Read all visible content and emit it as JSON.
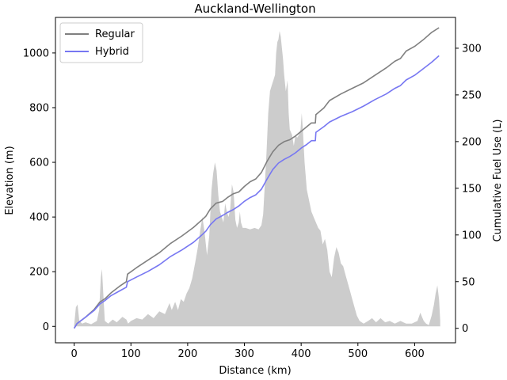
{
  "chart_data": {
    "type": "line",
    "title": "Auckland-Wellington",
    "xlabel": "Distance (km)",
    "ylabel": "Elevation (m)",
    "y2label": "Cumulative Fuel Use (L)",
    "xlim": [
      -33,
      672
    ],
    "ylim": [
      -60,
      1130
    ],
    "y2lim": [
      -15.5,
      333
    ],
    "xticks": [
      0,
      100,
      200,
      300,
      400,
      500,
      600
    ],
    "yticks": [
      0,
      200,
      400,
      600,
      800,
      1000
    ],
    "y2ticks": [
      0,
      50,
      100,
      150,
      200,
      250,
      300
    ],
    "grid": false,
    "legend": "top-left",
    "elevation": {
      "name": "Elevation",
      "color": "#cccccc",
      "points": [
        [
          0,
          5
        ],
        [
          3,
          70
        ],
        [
          6,
          80
        ],
        [
          9,
          20
        ],
        [
          14,
          10
        ],
        [
          20,
          15
        ],
        [
          30,
          8
        ],
        [
          40,
          20
        ],
        [
          44,
          60
        ],
        [
          47,
          180
        ],
        [
          49,
          210
        ],
        [
          51,
          130
        ],
        [
          54,
          20
        ],
        [
          60,
          10
        ],
        [
          68,
          25
        ],
        [
          75,
          15
        ],
        [
          85,
          35
        ],
        [
          92,
          25
        ],
        [
          95,
          10
        ],
        [
          100,
          20
        ],
        [
          110,
          30
        ],
        [
          120,
          25
        ],
        [
          130,
          45
        ],
        [
          140,
          30
        ],
        [
          150,
          55
        ],
        [
          160,
          45
        ],
        [
          168,
          85
        ],
        [
          172,
          60
        ],
        [
          178,
          90
        ],
        [
          183,
          60
        ],
        [
          188,
          100
        ],
        [
          193,
          90
        ],
        [
          198,
          120
        ],
        [
          203,
          140
        ],
        [
          208,
          175
        ],
        [
          213,
          230
        ],
        [
          218,
          290
        ],
        [
          222,
          350
        ],
        [
          226,
          400
        ],
        [
          230,
          340
        ],
        [
          234,
          260
        ],
        [
          238,
          330
        ],
        [
          242,
          500
        ],
        [
          245,
          560
        ],
        [
          248,
          600
        ],
        [
          251,
          570
        ],
        [
          254,
          480
        ],
        [
          257,
          420
        ],
        [
          260,
          400
        ],
        [
          263,
          380
        ],
        [
          266,
          450
        ],
        [
          269,
          420
        ],
        [
          272,
          400
        ],
        [
          275,
          430
        ],
        [
          278,
          520
        ],
        [
          281,
          490
        ],
        [
          284,
          390
        ],
        [
          287,
          360
        ],
        [
          290,
          380
        ],
        [
          292,
          420
        ],
        [
          294,
          380
        ],
        [
          297,
          360
        ],
        [
          302,
          360
        ],
        [
          310,
          355
        ],
        [
          318,
          360
        ],
        [
          325,
          355
        ],
        [
          330,
          370
        ],
        [
          333,
          410
        ],
        [
          336,
          520
        ],
        [
          339,
          640
        ],
        [
          342,
          780
        ],
        [
          345,
          860
        ],
        [
          348,
          880
        ],
        [
          351,
          900
        ],
        [
          354,
          920
        ],
        [
          356,
          1000
        ],
        [
          358,
          1040
        ],
        [
          360,
          1050
        ],
        [
          362,
          1080
        ],
        [
          364,
          1060
        ],
        [
          366,
          1020
        ],
        [
          368,
          980
        ],
        [
          370,
          920
        ],
        [
          373,
          860
        ],
        [
          376,
          900
        ],
        [
          378,
          780
        ],
        [
          380,
          720
        ],
        [
          384,
          700
        ],
        [
          387,
          660
        ],
        [
          390,
          700
        ],
        [
          393,
          690
        ],
        [
          396,
          700
        ],
        [
          399,
          720
        ],
        [
          401,
          780
        ],
        [
          403,
          720
        ],
        [
          406,
          600
        ],
        [
          410,
          500
        ],
        [
          414,
          460
        ],
        [
          418,
          420
        ],
        [
          422,
          400
        ],
        [
          426,
          380
        ],
        [
          430,
          360
        ],
        [
          434,
          350
        ],
        [
          438,
          300
        ],
        [
          442,
          320
        ],
        [
          446,
          280
        ],
        [
          450,
          200
        ],
        [
          454,
          180
        ],
        [
          458,
          250
        ],
        [
          462,
          290
        ],
        [
          466,
          270
        ],
        [
          470,
          230
        ],
        [
          474,
          220
        ],
        [
          478,
          190
        ],
        [
          482,
          160
        ],
        [
          486,
          130
        ],
        [
          490,
          100
        ],
        [
          494,
          70
        ],
        [
          498,
          40
        ],
        [
          503,
          20
        ],
        [
          510,
          10
        ],
        [
          518,
          20
        ],
        [
          525,
          30
        ],
        [
          532,
          15
        ],
        [
          540,
          30
        ],
        [
          548,
          15
        ],
        [
          556,
          20
        ],
        [
          565,
          10
        ],
        [
          575,
          20
        ],
        [
          585,
          10
        ],
        [
          595,
          10
        ],
        [
          605,
          20
        ],
        [
          610,
          50
        ],
        [
          613,
          35
        ],
        [
          616,
          20
        ],
        [
          620,
          10
        ],
        [
          625,
          5
        ],
        [
          630,
          40
        ],
        [
          634,
          80
        ],
        [
          637,
          120
        ],
        [
          640,
          150
        ],
        [
          643,
          100
        ],
        [
          645,
          20
        ]
      ]
    },
    "series": [
      {
        "name": "Regular",
        "color": "#808080",
        "points": [
          [
            0,
            0
          ],
          [
            5,
            5
          ],
          [
            20,
            12
          ],
          [
            35,
            20
          ],
          [
            45,
            28
          ],
          [
            55,
            32
          ],
          [
            65,
            38
          ],
          [
            80,
            45
          ],
          [
            92,
            50
          ],
          [
            94,
            58
          ],
          [
            110,
            65
          ],
          [
            130,
            73
          ],
          [
            150,
            81
          ],
          [
            170,
            91
          ],
          [
            190,
            99
          ],
          [
            210,
            108
          ],
          [
            225,
            116
          ],
          [
            232,
            120
          ],
          [
            240,
            128
          ],
          [
            250,
            134
          ],
          [
            262,
            136
          ],
          [
            270,
            140
          ],
          [
            280,
            144
          ],
          [
            290,
            146
          ],
          [
            300,
            152
          ],
          [
            310,
            157
          ],
          [
            320,
            160
          ],
          [
            330,
            167
          ],
          [
            340,
            179
          ],
          [
            350,
            189
          ],
          [
            360,
            196
          ],
          [
            370,
            200
          ],
          [
            380,
            202
          ],
          [
            390,
            206
          ],
          [
            400,
            211
          ],
          [
            410,
            216
          ],
          [
            418,
            220
          ],
          [
            425,
            220
          ],
          [
            426,
            229
          ],
          [
            440,
            236
          ],
          [
            450,
            244
          ],
          [
            470,
            251
          ],
          [
            490,
            257
          ],
          [
            510,
            263
          ],
          [
            530,
            271
          ],
          [
            550,
            279
          ],
          [
            565,
            286
          ],
          [
            575,
            289
          ],
          [
            585,
            297
          ],
          [
            600,
            302
          ],
          [
            615,
            309
          ],
          [
            630,
            317
          ],
          [
            643,
            322
          ]
        ]
      },
      {
        "name": "Hybrid",
        "color": "#7777f2",
        "points": [
          [
            0,
            0
          ],
          [
            5,
            5
          ],
          [
            20,
            12
          ],
          [
            35,
            19
          ],
          [
            45,
            26
          ],
          [
            55,
            30
          ],
          [
            65,
            35
          ],
          [
            80,
            40
          ],
          [
            92,
            44
          ],
          [
            94,
            50
          ],
          [
            110,
            55
          ],
          [
            130,
            61
          ],
          [
            150,
            68
          ],
          [
            170,
            77
          ],
          [
            190,
            84
          ],
          [
            210,
            92
          ],
          [
            225,
            100
          ],
          [
            232,
            104
          ],
          [
            240,
            111
          ],
          [
            250,
            117
          ],
          [
            262,
            121
          ],
          [
            270,
            124
          ],
          [
            280,
            127
          ],
          [
            290,
            131
          ],
          [
            300,
            136
          ],
          [
            310,
            140
          ],
          [
            320,
            143
          ],
          [
            330,
            149
          ],
          [
            340,
            160
          ],
          [
            350,
            170
          ],
          [
            360,
            177
          ],
          [
            370,
            181
          ],
          [
            380,
            184
          ],
          [
            390,
            188
          ],
          [
            400,
            193
          ],
          [
            410,
            197
          ],
          [
            418,
            201
          ],
          [
            425,
            201
          ],
          [
            426,
            210
          ],
          [
            440,
            216
          ],
          [
            450,
            221
          ],
          [
            470,
            227
          ],
          [
            490,
            232
          ],
          [
            510,
            238
          ],
          [
            530,
            245
          ],
          [
            550,
            251
          ],
          [
            565,
            257
          ],
          [
            575,
            260
          ],
          [
            585,
            266
          ],
          [
            600,
            271
          ],
          [
            615,
            278
          ],
          [
            630,
            285
          ],
          [
            643,
            292
          ]
        ]
      }
    ]
  }
}
